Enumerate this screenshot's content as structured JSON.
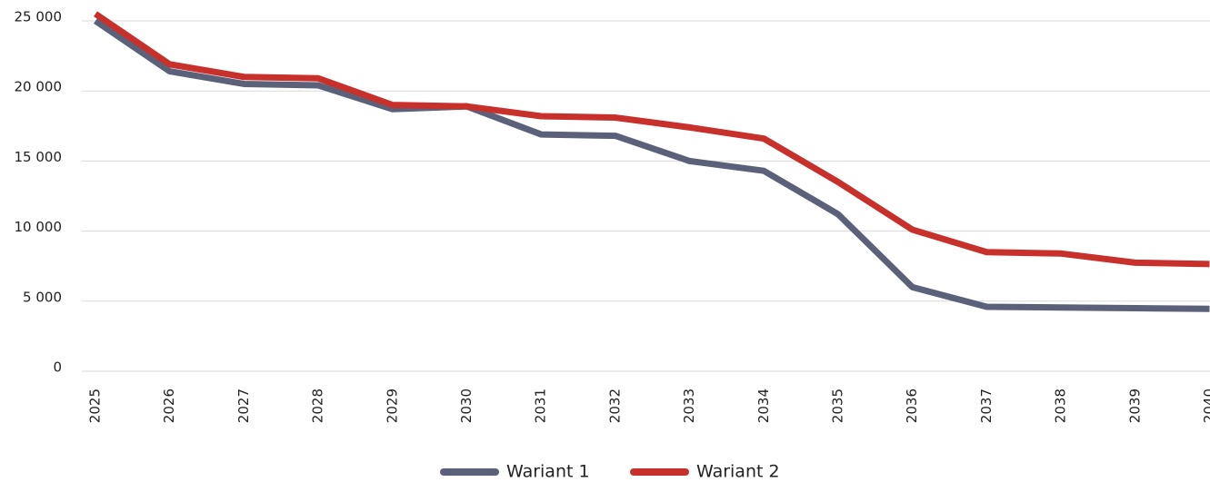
{
  "chart_data": {
    "type": "line",
    "categories": [
      "2025",
      "2026",
      "2027",
      "2028",
      "2029",
      "2030",
      "2031",
      "2032",
      "2033",
      "2034",
      "2035",
      "2036",
      "2037",
      "2038",
      "2039",
      "2040"
    ],
    "series": [
      {
        "name": "Wariant 1",
        "color": "#5b6178",
        "values": [
          25000,
          21400,
          20500,
          20400,
          18700,
          18900,
          16900,
          16800,
          15000,
          14300,
          11200,
          6000,
          4600,
          4550,
          4500,
          4450
        ]
      },
      {
        "name": "Wariant 2",
        "color": "#c8302c",
        "values": [
          25500,
          21900,
          21000,
          20900,
          19000,
          18900,
          18200,
          18100,
          17400,
          16600,
          13500,
          10100,
          8500,
          8400,
          7750,
          7650
        ]
      }
    ],
    "ylim": [
      0,
      25000
    ],
    "yticks": [
      {
        "value": 0,
        "label": "0"
      },
      {
        "value": 5000,
        "label": "5 000"
      },
      {
        "value": 10000,
        "label": "10 000"
      },
      {
        "value": 15000,
        "label": "15 000"
      },
      {
        "value": 20000,
        "label": "20 000"
      },
      {
        "value": 25000,
        "label": "25 000"
      }
    ],
    "grid": true,
    "legend": "bottom"
  }
}
